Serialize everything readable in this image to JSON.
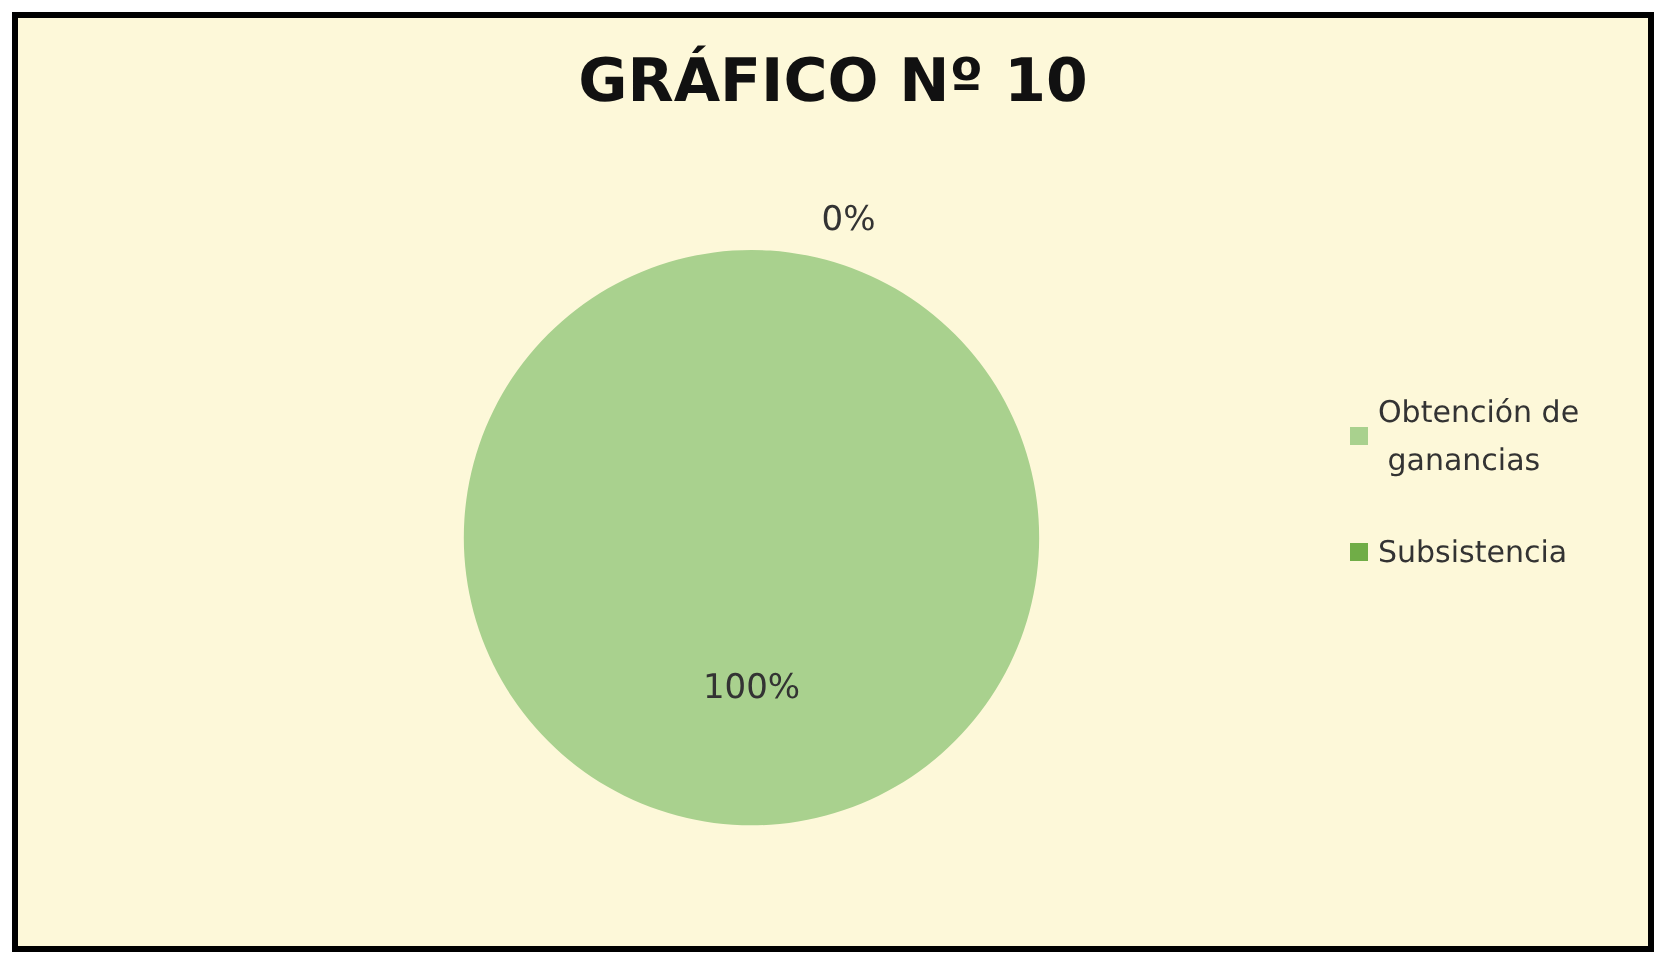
{
  "chart_data": {
    "type": "pie",
    "title": "GRÁFICO Nº 10",
    "categories": [
      "Obtención de ganancias",
      "Subsistencia"
    ],
    "values": [
      100,
      0
    ],
    "colors": [
      "#a9d18e",
      "#70ad47"
    ],
    "value_labels": [
      "100%",
      "0%"
    ],
    "legend": "right"
  }
}
